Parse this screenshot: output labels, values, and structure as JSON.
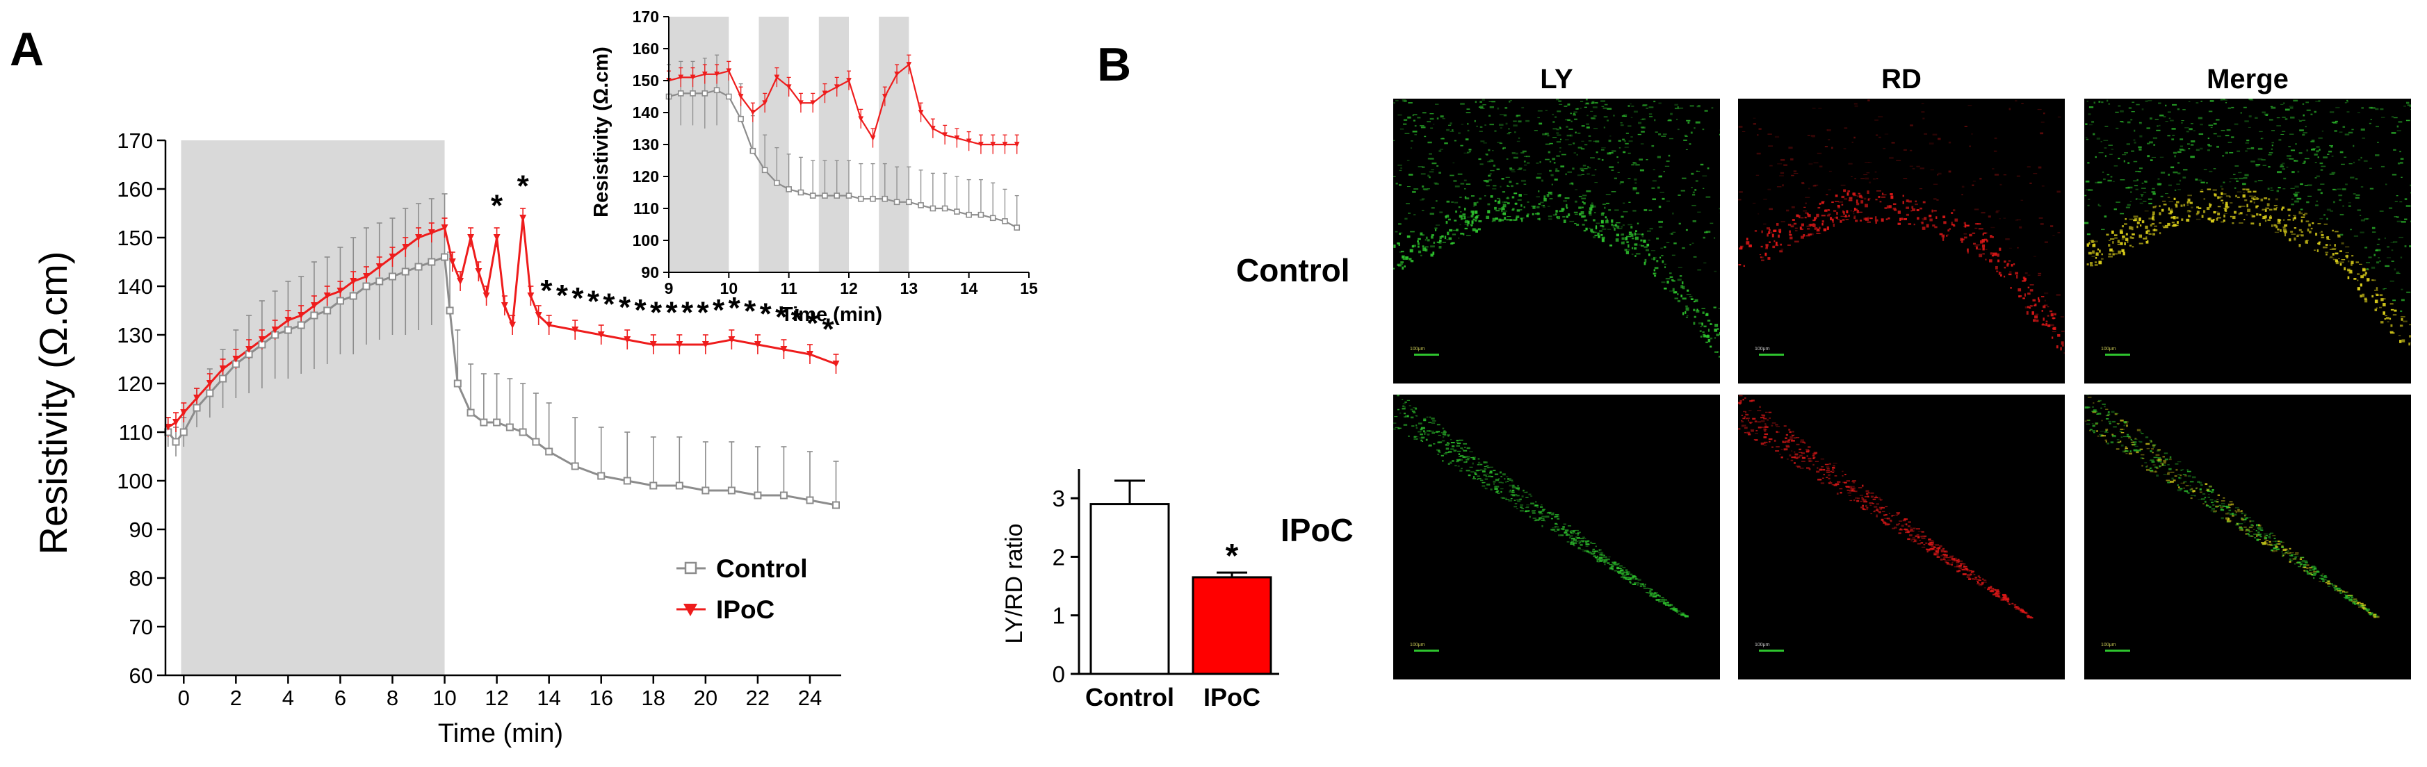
{
  "panels": {
    "a_label": "A",
    "b_label": "B"
  },
  "chart_data": [
    {
      "id": "main_resistivity",
      "type": "line",
      "xlabel": "Time (min)",
      "ylabel": "Resistivity (Ω.cm)",
      "xlim": [
        -0.7,
        25.2
      ],
      "ylim": [
        60,
        170
      ],
      "xticks": [
        "0",
        "2",
        "4",
        "6",
        "8",
        "10",
        "12",
        "14",
        "16",
        "18",
        "20",
        "22",
        "24"
      ],
      "yticks": [
        "60",
        "70",
        "80",
        "90",
        "100",
        "110",
        "120",
        "130",
        "140",
        "150",
        "160",
        "170"
      ],
      "shaded_regions": [
        [
          -0.1,
          10
        ]
      ],
      "legend": {
        "placement": "lower-right",
        "entries": [
          "Control",
          "IPoC"
        ]
      },
      "colors": {
        "control": "#8c8c8c",
        "ipoc": "#ee1c1c",
        "shade": "#d9d9d9"
      },
      "significance_marker": "*",
      "significance_x": [
        12,
        13,
        13.9,
        14.5,
        15.1,
        15.7,
        16.3,
        16.9,
        17.5,
        18.1,
        18.7,
        19.3,
        19.9,
        20.5,
        21.1,
        21.7,
        22.3,
        22.9,
        23.5,
        24.1,
        24.7
      ],
      "series": [
        {
          "name": "Control",
          "x": [
            -0.6,
            -0.3,
            0,
            0.5,
            1,
            1.5,
            2,
            2.5,
            3,
            3.5,
            4,
            4.5,
            5,
            5.5,
            6,
            6.5,
            7,
            7.5,
            8,
            8.5,
            9,
            9.5,
            10,
            10.2,
            10.5,
            11,
            11.5,
            12,
            12.5,
            13,
            13.5,
            14,
            15,
            16,
            17,
            18,
            19,
            20,
            21,
            22,
            23,
            24,
            25
          ],
          "y": [
            110,
            108,
            110,
            115,
            118,
            121,
            124,
            126,
            128,
            130,
            131,
            132,
            134,
            135,
            137,
            138,
            140,
            141,
            142,
            143,
            144,
            145,
            146,
            135,
            120,
            114,
            112,
            112,
            111,
            110,
            108,
            106,
            103,
            101,
            100,
            99,
            99,
            98,
            98,
            97,
            97,
            96,
            95
          ],
          "err": [
            3,
            3,
            3,
            4,
            5,
            6,
            7,
            8,
            9,
            9,
            10,
            10,
            11,
            11,
            11,
            12,
            12,
            12,
            12,
            13,
            13,
            13,
            13,
            12,
            11,
            10,
            10,
            10,
            10,
            10,
            10,
            10,
            10,
            10,
            10,
            10,
            10,
            10,
            10,
            10,
            10,
            10,
            9
          ]
        },
        {
          "name": "IPoC",
          "x": [
            -0.6,
            -0.3,
            0,
            0.5,
            1,
            1.5,
            2,
            2.5,
            3,
            3.5,
            4,
            4.5,
            5,
            5.5,
            6,
            6.5,
            7,
            7.5,
            8,
            8.5,
            9,
            9.5,
            10,
            10.3,
            10.6,
            11,
            11.3,
            11.6,
            12,
            12.3,
            12.6,
            13,
            13.3,
            13.6,
            14,
            15,
            16,
            17,
            18,
            19,
            20,
            21,
            22,
            23,
            24,
            25
          ],
          "y": [
            111,
            112,
            114,
            117,
            120,
            123,
            125,
            127,
            129,
            131,
            133,
            134,
            136,
            138,
            139,
            141,
            142,
            144,
            146,
            148,
            150,
            151,
            152,
            145,
            141,
            150,
            143,
            138,
            150,
            136,
            132,
            154,
            138,
            134,
            132,
            131,
            130,
            129,
            128,
            128,
            128,
            129,
            128,
            127,
            126,
            124
          ],
          "err": [
            2,
            2,
            2,
            2,
            2,
            2,
            2,
            2,
            2,
            2,
            2,
            2,
            2,
            2,
            2,
            2,
            2,
            2,
            2,
            2,
            2,
            2,
            2,
            2,
            2,
            2,
            2,
            2,
            2,
            2,
            2,
            2,
            2,
            2,
            2,
            2,
            2,
            2,
            2,
            2,
            2,
            2,
            2,
            2,
            2,
            2
          ]
        }
      ]
    },
    {
      "id": "inset_resistivity",
      "type": "line",
      "xlabel": "Time (min)",
      "ylabel": "Resistivity (Ω.cm)",
      "xlim": [
        9,
        15
      ],
      "ylim": [
        90,
        170
      ],
      "xticks": [
        "9",
        "10",
        "11",
        "12",
        "13",
        "14",
        "15"
      ],
      "yticks": [
        "90",
        "100",
        "110",
        "120",
        "130",
        "140",
        "150",
        "160",
        "170"
      ],
      "shaded_regions": [
        [
          9,
          10
        ],
        [
          10.5,
          11
        ],
        [
          11.5,
          12
        ],
        [
          12.5,
          13
        ]
      ],
      "series": [
        {
          "name": "Control",
          "x": [
            9,
            9.2,
            9.4,
            9.6,
            9.8,
            10,
            10.2,
            10.4,
            10.6,
            10.8,
            11,
            11.2,
            11.4,
            11.6,
            11.8,
            12,
            12.2,
            12.4,
            12.6,
            12.8,
            13,
            13.2,
            13.4,
            13.6,
            13.8,
            14,
            14.2,
            14.4,
            14.6,
            14.8
          ],
          "y": [
            145,
            146,
            146,
            146,
            147,
            145,
            138,
            128,
            122,
            118,
            116,
            115,
            114,
            114,
            114,
            114,
            113,
            113,
            113,
            112,
            112,
            111,
            110,
            110,
            109,
            108,
            108,
            107,
            106,
            104
          ],
          "err": [
            10,
            10,
            10,
            11,
            11,
            11,
            11,
            11,
            11,
            11,
            11,
            11,
            11,
            11,
            11,
            11,
            11,
            11,
            11,
            11,
            11,
            11,
            11,
            11,
            11,
            11,
            11,
            11,
            10,
            10
          ]
        },
        {
          "name": "IPoC",
          "x": [
            9,
            9.2,
            9.4,
            9.6,
            9.8,
            10,
            10.2,
            10.4,
            10.6,
            10.8,
            11,
            11.2,
            11.4,
            11.6,
            11.8,
            12,
            12.2,
            12.4,
            12.6,
            12.8,
            13,
            13.2,
            13.4,
            13.6,
            13.8,
            14,
            14.2,
            14.4,
            14.6,
            14.8
          ],
          "y": [
            150,
            151,
            151,
            152,
            152,
            153,
            145,
            140,
            143,
            151,
            148,
            143,
            143,
            146,
            148,
            150,
            138,
            132,
            145,
            152,
            155,
            140,
            135,
            133,
            132,
            131,
            130,
            130,
            130,
            130
          ],
          "err": [
            3,
            3,
            3,
            3,
            3,
            3,
            3,
            3,
            3,
            3,
            3,
            3,
            3,
            3,
            3,
            3,
            3,
            3,
            3,
            3,
            3,
            3,
            3,
            3,
            3,
            3,
            3,
            3,
            3,
            3
          ]
        }
      ]
    },
    {
      "id": "ly_rd_ratio",
      "type": "bar",
      "ylabel": "LY/RD ratio",
      "ylim": [
        0,
        3.5
      ],
      "yticks": [
        "0",
        "1",
        "2",
        "3"
      ],
      "categories": [
        "Control",
        "IPoC"
      ],
      "values": [
        2.9,
        1.65
      ],
      "errors": [
        0.4,
        0.08
      ],
      "colors": {
        "Control": "#ffffff",
        "IPoC": "#ff0000"
      },
      "significance_marker": "*"
    }
  ],
  "micrographs": {
    "columns": [
      "LY",
      "RD",
      "Merge"
    ],
    "rows": [
      "Control",
      "IPoC"
    ],
    "scale_bar_label": "100μm",
    "colors": {
      "green": "#2ec42e",
      "red": "#e01818",
      "yellow": "#d8cc1a"
    }
  }
}
